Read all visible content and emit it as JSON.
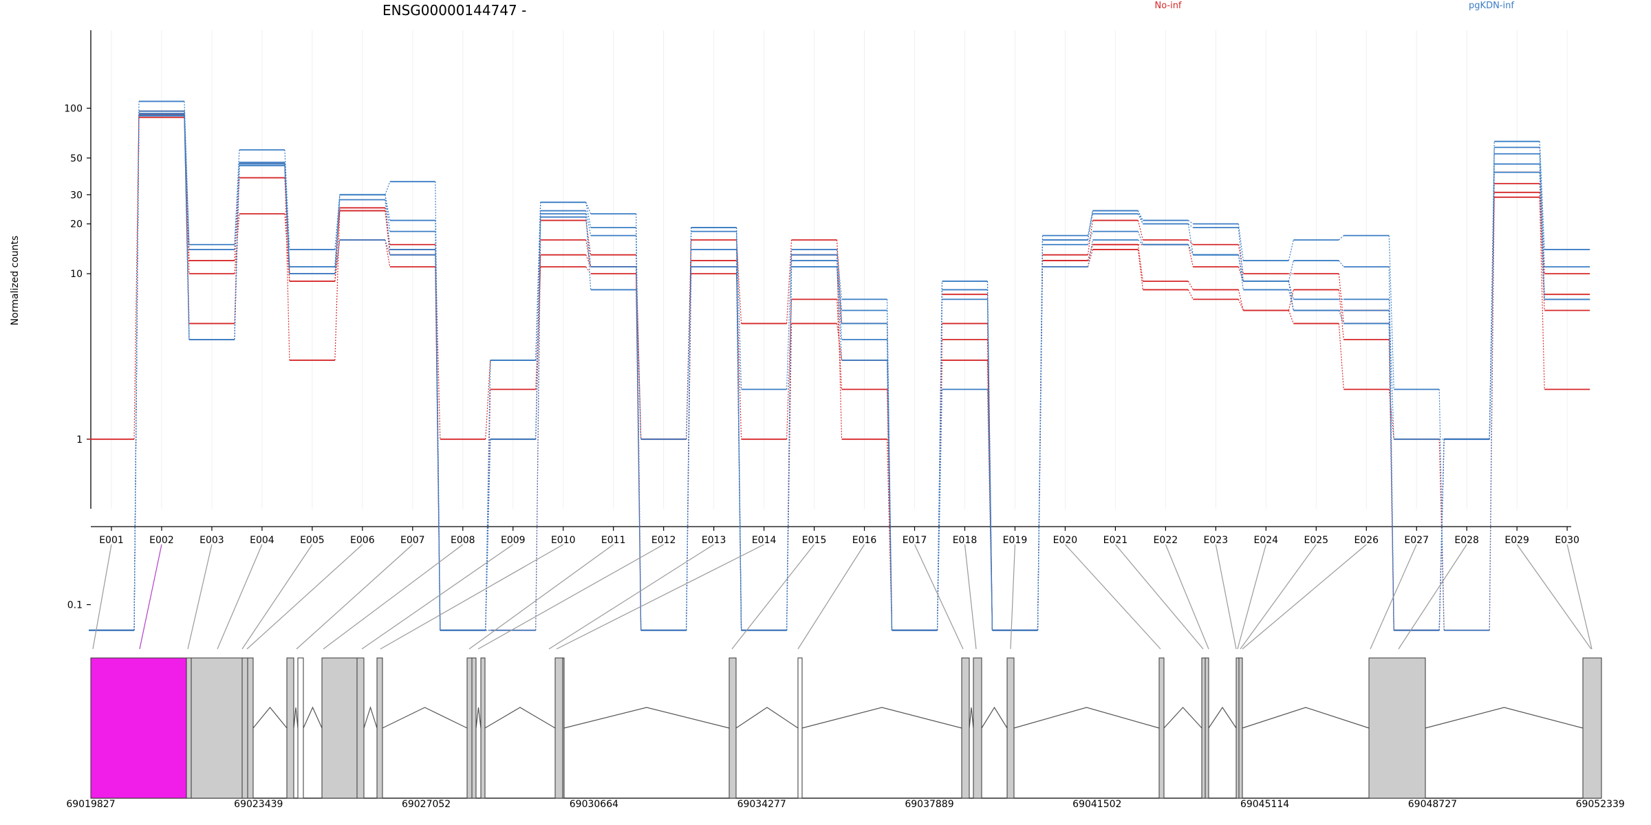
{
  "colors": {
    "No-inf": "#d62728",
    "pgKDN-inf": "#3a7dc4",
    "highlight_exon": "#f01ee8",
    "exon_fill": "#cccccc"
  },
  "chart_data": {
    "type": "line",
    "title": "ENSG00000144747 -",
    "ylabel": "Normalized counts",
    "xlabel": "",
    "yscale": "log",
    "ylim": [
      0.07,
      130
    ],
    "yticks": [
      "0.1",
      "1",
      "10",
      "20",
      "30",
      "50",
      "100"
    ],
    "grid": "vertical",
    "categories": [
      "E001",
      "E002",
      "E003",
      "E004",
      "E005",
      "E006",
      "E007",
      "E008",
      "E009",
      "E010",
      "E011",
      "E012",
      "E013",
      "E014",
      "E015",
      "E016",
      "E017",
      "E018",
      "E019",
      "E020",
      "E021",
      "E022",
      "E023",
      "E024",
      "E025",
      "E026",
      "E027",
      "E028",
      "E029",
      "E030"
    ],
    "legend": [
      "No-inf",
      "pgKDN-inf"
    ],
    "series": [
      {
        "group": "No-inf",
        "values": [
          1,
          92,
          12,
          38,
          10,
          24,
          15,
          1,
          3,
          21,
          13,
          1,
          16,
          5,
          16,
          5,
          0.07,
          7.5,
          0.07,
          13,
          21,
          16,
          15,
          10,
          10,
          5,
          0.07,
          1,
          41,
          7.5
        ]
      },
      {
        "group": "No-inf",
        "values": [
          0.07,
          88,
          10,
          23,
          9,
          16,
          11,
          0.07,
          2,
          11,
          10,
          0.07,
          10,
          1,
          7,
          2,
          0.07,
          3,
          0.07,
          11,
          14,
          8,
          7,
          6,
          5,
          2,
          1,
          0.07,
          29,
          2
        ]
      },
      {
        "group": "No-inf",
        "values": [
          0.07,
          96,
          5,
          46,
          3,
          24,
          13,
          0.07,
          1,
          13,
          11,
          1,
          12,
          0.07,
          13,
          1,
          0.07,
          4,
          0.07,
          12,
          15,
          9,
          8,
          6,
          8,
          4,
          0.07,
          1,
          35,
          10
        ]
      },
      {
        "group": "No-inf",
        "values": [
          0.07,
          90,
          4,
          46,
          9,
          25,
          14,
          0.07,
          0.07,
          16,
          11,
          0.07,
          11,
          0.07,
          5,
          3,
          0.07,
          5,
          0.07,
          12,
          15,
          15,
          11,
          9,
          6,
          6,
          0.07,
          1,
          31,
          6
        ]
      },
      {
        "group": "pgKDN-inf",
        "values": [
          0.07,
          110,
          15,
          56,
          14,
          30,
          36,
          0.07,
          3,
          27,
          23,
          0.07,
          19,
          2,
          14,
          7,
          0.07,
          9,
          0.07,
          17,
          24,
          21,
          20,
          12,
          16,
          17,
          2,
          0.07,
          63,
          14
        ]
      },
      {
        "group": "pgKDN-inf",
        "values": [
          0.07,
          96,
          14,
          47,
          11,
          30,
          21,
          0.07,
          3,
          27,
          19,
          0.07,
          19,
          0.07,
          11,
          6,
          0.07,
          9,
          0.07,
          16,
          24,
          20,
          19,
          9,
          12,
          11,
          0.07,
          1,
          58,
          11
        ]
      },
      {
        "group": "pgKDN-inf",
        "values": [
          0.07,
          93,
          4,
          46,
          11,
          30,
          18,
          0.07,
          1,
          24,
          17,
          0.07,
          18,
          0.07,
          12,
          5,
          0.07,
          8,
          0.07,
          16,
          23,
          20,
          13,
          9,
          7,
          7,
          1,
          1,
          53,
          7
        ]
      },
      {
        "group": "pgKDN-inf",
        "values": [
          0.07,
          91,
          4,
          45,
          10,
          28,
          14,
          0.07,
          1,
          23,
          8,
          0.07,
          14,
          0.07,
          13,
          4,
          0.07,
          7,
          0.07,
          15,
          18,
          15,
          13,
          9,
          6,
          6,
          0.07,
          1,
          46,
          7
        ]
      },
      {
        "group": "pgKDN-inf",
        "values": [
          0.07,
          90,
          4,
          47,
          10,
          16,
          13,
          0.07,
          0.07,
          22,
          11,
          1,
          11,
          0.07,
          11,
          3,
          0.07,
          2,
          0.07,
          11,
          16,
          15,
          13,
          8,
          6,
          5,
          0.07,
          1,
          41,
          7
        ]
      }
    ],
    "gene_model": {
      "coordinates": [
        "69019827",
        "69023439",
        "69027052",
        "69030664",
        "69034277",
        "69037889",
        "69041502",
        "69045114",
        "69048727",
        "69052339"
      ]
    }
  }
}
